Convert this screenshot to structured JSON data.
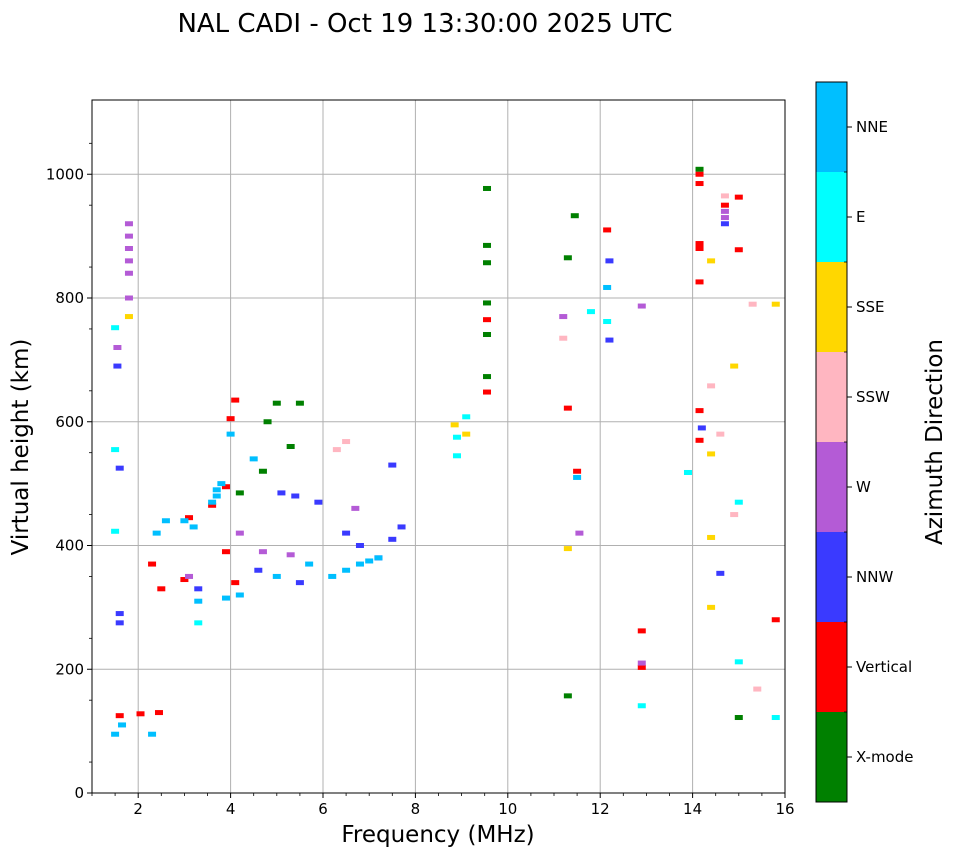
{
  "chart_data": {
    "type": "scatter",
    "title": "NAL CADI - Oct 19 13:30:00 2025 UTC",
    "xlabel": "Frequency (MHz)",
    "ylabel": "Virtual height (km)",
    "xlim": [
      1,
      16
    ],
    "ylim": [
      0,
      1120
    ],
    "xticks": [
      2,
      4,
      6,
      8,
      10,
      12,
      14,
      16
    ],
    "yticks": [
      0,
      200,
      400,
      600,
      800,
      1000
    ],
    "grid": true,
    "colorbar": {
      "label": "Azimuth Direction",
      "categories": [
        "X-mode",
        "Vertical",
        "NNW",
        "W",
        "SSW",
        "SSE",
        "E",
        "NNE"
      ],
      "colors": [
        "#008000",
        "#ff0000",
        "#3a3aff",
        "#b45bd6",
        "#ffb6c1",
        "#ffd700",
        "#00ffff",
        "#00bfff"
      ]
    },
    "series": [
      {
        "name": "X-mode",
        "points": [
          [
            9.55,
            977
          ],
          [
            9.55,
            885
          ],
          [
            9.55,
            857
          ],
          [
            9.55,
            792
          ],
          [
            9.55,
            741
          ],
          [
            9.55,
            673
          ],
          [
            11.3,
            865
          ],
          [
            11.3,
            157
          ],
          [
            11.45,
            933
          ],
          [
            14.15,
            1008
          ],
          [
            15.0,
            122
          ],
          [
            5.0,
            630
          ],
          [
            5.5,
            630
          ],
          [
            4.8,
            600
          ],
          [
            5.3,
            560
          ],
          [
            4.7,
            520
          ],
          [
            4.2,
            485
          ]
        ]
      },
      {
        "name": "Vertical",
        "points": [
          [
            4.1,
            635
          ],
          [
            4.0,
            605
          ],
          [
            3.9,
            495
          ],
          [
            3.6,
            465
          ],
          [
            3.1,
            445
          ],
          [
            3.9,
            390
          ],
          [
            4.1,
            340
          ],
          [
            3.0,
            345
          ],
          [
            2.5,
            330
          ],
          [
            2.3,
            370
          ],
          [
            2.45,
            130
          ],
          [
            2.05,
            128
          ],
          [
            1.6,
            125
          ],
          [
            9.55,
            765
          ],
          [
            9.55,
            648
          ],
          [
            11.3,
            622
          ],
          [
            11.5,
            520
          ],
          [
            12.15,
            910
          ],
          [
            12.9,
            262
          ],
          [
            12.9,
            203
          ],
          [
            14.15,
            1000
          ],
          [
            14.15,
            985
          ],
          [
            14.15,
            888
          ],
          [
            14.15,
            826
          ],
          [
            14.15,
            618
          ],
          [
            14.15,
            570
          ],
          [
            14.15,
            880
          ],
          [
            14.7,
            950
          ],
          [
            15.0,
            963
          ],
          [
            15.0,
            878
          ],
          [
            15.8,
            280
          ]
        ]
      },
      {
        "name": "NNW",
        "points": [
          [
            1.6,
            290
          ],
          [
            1.6,
            275
          ],
          [
            1.6,
            525
          ],
          [
            1.55,
            690
          ],
          [
            5.1,
            485
          ],
          [
            5.4,
            480
          ],
          [
            5.9,
            470
          ],
          [
            6.5,
            420
          ],
          [
            6.8,
            400
          ],
          [
            7.2,
            380
          ],
          [
            7.5,
            410
          ],
          [
            7.7,
            430
          ],
          [
            7.5,
            530
          ],
          [
            12.2,
            860
          ],
          [
            12.2,
            732
          ],
          [
            14.6,
            355
          ],
          [
            14.7,
            920
          ],
          [
            14.2,
            590
          ],
          [
            3.3,
            330
          ],
          [
            4.6,
            360
          ],
          [
            5.5,
            340
          ]
        ]
      },
      {
        "name": "W",
        "points": [
          [
            1.8,
            920
          ],
          [
            1.8,
            900
          ],
          [
            1.8,
            880
          ],
          [
            1.8,
            860
          ],
          [
            1.8,
            840
          ],
          [
            1.8,
            800
          ],
          [
            1.55,
            720
          ],
          [
            12.9,
            787
          ],
          [
            12.9,
            210
          ],
          [
            14.7,
            940
          ],
          [
            14.7,
            930
          ],
          [
            11.2,
            770
          ],
          [
            11.55,
            420
          ],
          [
            3.1,
            350
          ],
          [
            4.2,
            420
          ],
          [
            4.7,
            390
          ],
          [
            5.3,
            385
          ],
          [
            6.7,
            460
          ]
        ]
      },
      {
        "name": "SSW",
        "points": [
          [
            6.5,
            568
          ],
          [
            6.3,
            555
          ],
          [
            11.2,
            735
          ],
          [
            14.4,
            658
          ],
          [
            14.6,
            580
          ],
          [
            14.9,
            450
          ],
          [
            15.3,
            790
          ],
          [
            15.4,
            168
          ],
          [
            14.7,
            965
          ]
        ]
      },
      {
        "name": "SSE",
        "points": [
          [
            8.85,
            595
          ],
          [
            9.1,
            580
          ],
          [
            11.3,
            395
          ],
          [
            14.4,
            860
          ],
          [
            14.4,
            548
          ],
          [
            14.4,
            413
          ],
          [
            14.4,
            300
          ],
          [
            14.9,
            690
          ],
          [
            15.8,
            790
          ],
          [
            1.8,
            770
          ]
        ]
      },
      {
        "name": "E",
        "points": [
          [
            1.5,
            555
          ],
          [
            1.5,
            423
          ],
          [
            1.5,
            752
          ],
          [
            9.1,
            608
          ],
          [
            8.9,
            575
          ],
          [
            8.9,
            545
          ],
          [
            12.9,
            141
          ],
          [
            15.0,
            470
          ],
          [
            15.0,
            212
          ],
          [
            15.8,
            122
          ],
          [
            13.9,
            518
          ],
          [
            11.8,
            778
          ],
          [
            12.15,
            762
          ],
          [
            3.3,
            275
          ]
        ]
      },
      {
        "name": "NNE",
        "points": [
          [
            3.0,
            440
          ],
          [
            3.2,
            430
          ],
          [
            3.7,
            490
          ],
          [
            3.7,
            480
          ],
          [
            3.6,
            470
          ],
          [
            3.8,
            500
          ],
          [
            3.9,
            315
          ],
          [
            4.2,
            320
          ],
          [
            3.3,
            310
          ],
          [
            5.0,
            350
          ],
          [
            5.7,
            370
          ],
          [
            6.2,
            350
          ],
          [
            6.5,
            360
          ],
          [
            6.8,
            370
          ],
          [
            7.0,
            375
          ],
          [
            7.2,
            380
          ],
          [
            2.4,
            420
          ],
          [
            2.6,
            440
          ],
          [
            4.0,
            580
          ],
          [
            4.5,
            540
          ],
          [
            12.15,
            817
          ],
          [
            11.5,
            510
          ],
          [
            2.3,
            95
          ],
          [
            1.5,
            95
          ],
          [
            1.65,
            110
          ]
        ]
      }
    ]
  }
}
